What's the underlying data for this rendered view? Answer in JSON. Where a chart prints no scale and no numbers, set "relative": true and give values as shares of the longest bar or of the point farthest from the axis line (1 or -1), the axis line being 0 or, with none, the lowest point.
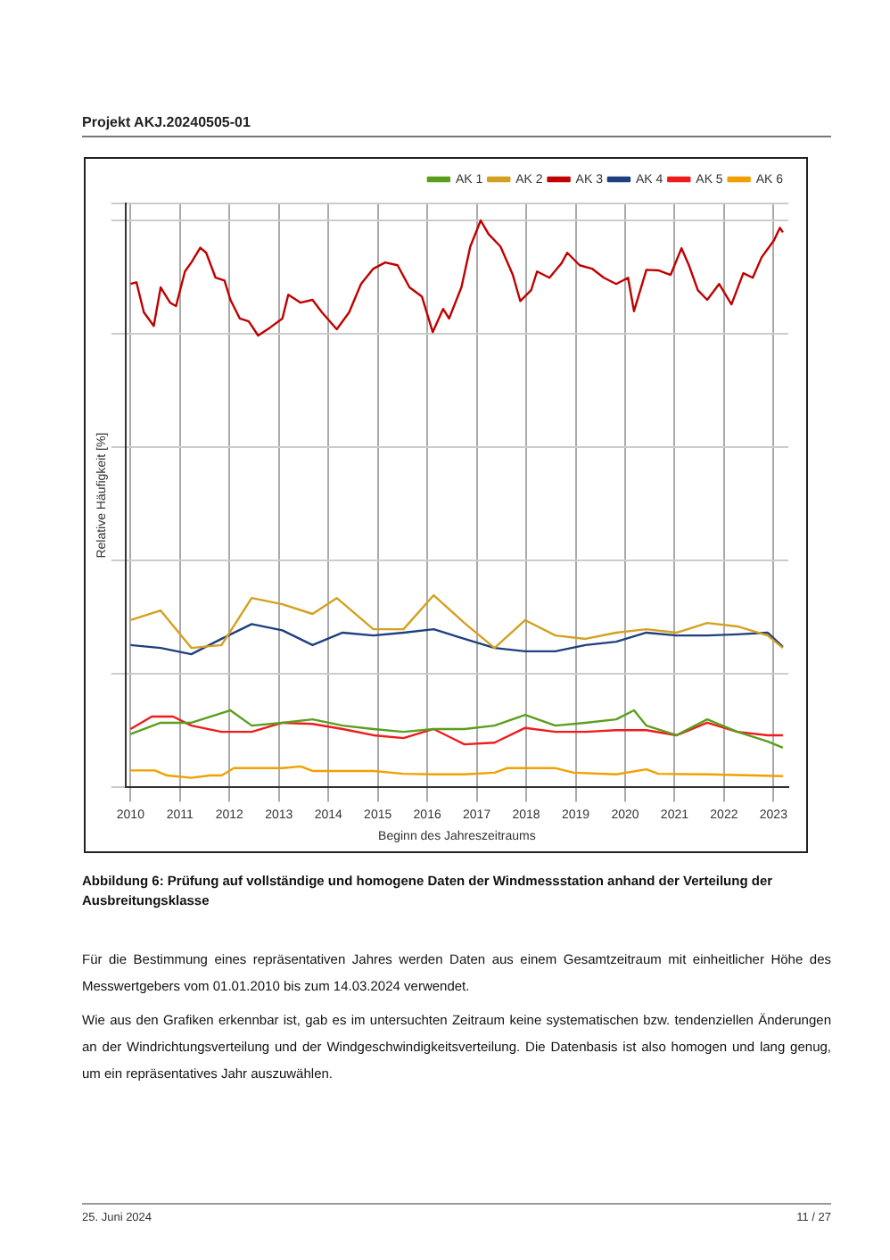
{
  "chart_data": {
    "type": "line",
    "relative": true,
    "xlabel": "Beginn des Jahreszeitraums",
    "ylabel": "Relative Häufigkeit [%]",
    "xlim": [
      2009.9,
      2023.3
    ],
    "xticks": [
      2010,
      2011,
      2012,
      2013,
      2014,
      2015,
      2016,
      2017,
      2018,
      2019,
      2020,
      2021,
      2022,
      2023
    ],
    "grid": true,
    "legend": "top right",
    "marker": "none",
    "line_style": "solid",
    "annotations": [
      "Projekt AKJ.20240505-01",
      "Abbildung 6: Prüfung auf vollständige und homogene Daten der Windmessstation anhand der Verteilung der Ausbreitungsklasse",
      "Für die Bestimmung eines repräsentativen Jahres werden Daten aus einem Gesamtzeitraum mit einheitlicher Höhe des Messwertgebers vom 01.01.2010 bis zum 14.03.2024 verwendet.",
      "Wie aus den Grafiken erkennbar ist, gab es im untersuchten Zeitraum keine systematischen bzw. tendenziellen Änderungen an der Windrichtungsverteilung und der Windgeschwindigkeitsverteilung. Die Datenbasis ist also homogen und lang genug, um ein repräsentatives Jahr auszuwählen.",
      "25. Juni 2024",
      "11 / 27"
    ],
    "series": [
      {
        "name": "AK 1",
        "color": "#5a9e1e",
        "x": [
          2010.0,
          2010.61,
          2011.23,
          2012.02,
          2012.45,
          2013.07,
          2013.68,
          2014.29,
          2014.91,
          2015.52,
          2016.13,
          2016.75,
          2017.36,
          2017.98,
          2018.59,
          2019.2,
          2019.82,
          2020.18,
          2020.43,
          2021.04,
          2021.66,
          2022.27,
          2022.88,
          2023.19
        ],
        "values": [
          0.094,
          0.114,
          0.114,
          0.136,
          0.109,
          0.114,
          0.12,
          0.109,
          0.103,
          0.098,
          0.103,
          0.103,
          0.109,
          0.128,
          0.109,
          0.114,
          0.12,
          0.136,
          0.109,
          0.092,
          0.12,
          0.098,
          0.081,
          0.07
        ]
      },
      {
        "name": "AK 2",
        "color": "#d4a020",
        "x": [
          2010.0,
          2010.61,
          2011.23,
          2011.84,
          2012.45,
          2013.07,
          2013.68,
          2014.17,
          2014.91,
          2015.52,
          2016.13,
          2016.75,
          2017.36,
          2017.98,
          2018.59,
          2019.2,
          2019.82,
          2020.43,
          2021.04,
          2021.66,
          2022.27,
          2022.88,
          2023.19
        ],
        "values": [
          0.295,
          0.312,
          0.246,
          0.251,
          0.334,
          0.323,
          0.306,
          0.334,
          0.279,
          0.279,
          0.339,
          0.29,
          0.246,
          0.295,
          0.268,
          0.262,
          0.273,
          0.279,
          0.273,
          0.29,
          0.284,
          0.268,
          0.246
        ]
      },
      {
        "name": "AK 3",
        "color": "#c00000",
        "x": [
          2010.0,
          2010.12,
          2010.27,
          2010.47,
          2010.61,
          2010.8,
          2010.92,
          2011.1,
          2011.23,
          2011.41,
          2011.53,
          2011.72,
          2011.9,
          2012.02,
          2012.21,
          2012.39,
          2012.58,
          2012.82,
          2013.07,
          2013.19,
          2013.44,
          2013.68,
          2013.87,
          2014.17,
          2014.42,
          2014.66,
          2014.91,
          2015.15,
          2015.4,
          2015.64,
          2015.89,
          2016.11,
          2016.32,
          2016.44,
          2016.69,
          2016.87,
          2017.08,
          2017.24,
          2017.48,
          2017.73,
          2017.88,
          2018.1,
          2018.22,
          2018.47,
          2018.71,
          2018.83,
          2019.08,
          2019.33,
          2019.57,
          2019.82,
          2020.06,
          2020.18,
          2020.43,
          2020.67,
          2020.92,
          2021.14,
          2021.29,
          2021.47,
          2021.66,
          2021.9,
          2022.15,
          2022.39,
          2022.58,
          2022.76,
          2023.01,
          2023.13,
          2023.19
        ],
        "values": [
          0.888,
          0.891,
          0.838,
          0.814,
          0.882,
          0.855,
          0.849,
          0.91,
          0.926,
          0.952,
          0.943,
          0.899,
          0.894,
          0.86,
          0.827,
          0.822,
          0.797,
          0.811,
          0.827,
          0.869,
          0.855,
          0.86,
          0.838,
          0.808,
          0.838,
          0.888,
          0.915,
          0.926,
          0.921,
          0.882,
          0.866,
          0.803,
          0.844,
          0.827,
          0.882,
          0.954,
          1.0,
          0.976,
          0.954,
          0.904,
          0.858,
          0.877,
          0.91,
          0.899,
          0.924,
          0.943,
          0.921,
          0.915,
          0.899,
          0.888,
          0.899,
          0.84,
          0.913,
          0.912,
          0.904,
          0.951,
          0.921,
          0.877,
          0.86,
          0.888,
          0.852,
          0.907,
          0.899,
          0.935,
          0.965,
          0.987,
          0.979
        ]
      },
      {
        "name": "AK 4",
        "color": "#1f3f7f",
        "x": [
          2010.0,
          2010.61,
          2011.23,
          2011.84,
          2012.45,
          2013.07,
          2013.68,
          2014.29,
          2014.91,
          2015.52,
          2016.13,
          2016.75,
          2017.36,
          2017.98,
          2018.59,
          2019.2,
          2019.82,
          2020.43,
          2021.04,
          2021.66,
          2022.27,
          2022.88,
          2023.19
        ],
        "values": [
          0.251,
          0.246,
          0.235,
          0.262,
          0.288,
          0.277,
          0.251,
          0.273,
          0.268,
          0.273,
          0.279,
          0.262,
          0.246,
          0.24,
          0.24,
          0.251,
          0.257,
          0.273,
          0.268,
          0.268,
          0.27,
          0.273,
          0.248
        ]
      },
      {
        "name": "AK 5",
        "color": "#ee1c1c",
        "x": [
          2010.0,
          2010.43,
          2010.86,
          2011.23,
          2011.84,
          2012.45,
          2013.07,
          2013.68,
          2014.29,
          2014.91,
          2015.52,
          2016.13,
          2016.75,
          2017.36,
          2017.98,
          2018.59,
          2019.2,
          2019.82,
          2020.43,
          2021.04,
          2021.66,
          2022.27,
          2022.88,
          2023.19
        ],
        "values": [
          0.103,
          0.125,
          0.125,
          0.109,
          0.098,
          0.098,
          0.114,
          0.112,
          0.103,
          0.092,
          0.087,
          0.103,
          0.076,
          0.079,
          0.105,
          0.098,
          0.098,
          0.101,
          0.101,
          0.092,
          0.114,
          0.098,
          0.092,
          0.092
        ]
      },
      {
        "name": "AK 6",
        "color": "#f0a000",
        "x": [
          2010.0,
          2010.49,
          2010.74,
          2011.23,
          2011.6,
          2011.84,
          2012.09,
          2013.07,
          2013.44,
          2013.68,
          2014.29,
          2014.91,
          2015.52,
          2016.13,
          2016.75,
          2017.36,
          2017.61,
          2018.59,
          2018.96,
          2019.82,
          2020.43,
          2020.67,
          2021.66,
          2023.19
        ],
        "values": [
          0.03,
          0.03,
          0.021,
          0.017,
          0.021,
          0.021,
          0.034,
          0.034,
          0.037,
          0.029,
          0.029,
          0.029,
          0.024,
          0.023,
          0.023,
          0.026,
          0.034,
          0.034,
          0.026,
          0.023,
          0.032,
          0.024,
          0.023,
          0.02
        ]
      }
    ]
  }
}
